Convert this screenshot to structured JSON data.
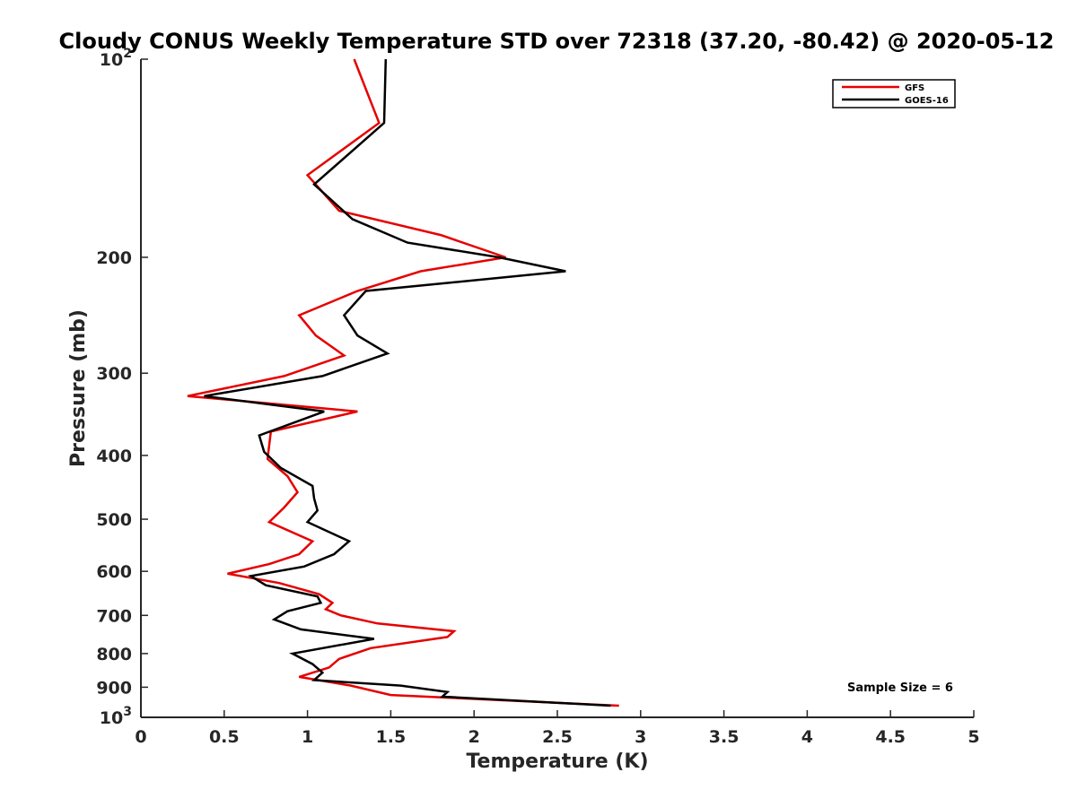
{
  "chart_data": {
    "type": "line",
    "title": "Cloudy CONUS Weekly Temperature STD over 72318 (37.20, -80.42) @ 2020-05-12",
    "xlabel": "Temperature (K)",
    "ylabel": "Pressure (mb)",
    "xlim": [
      0,
      5
    ],
    "ylim": [
      100,
      1000
    ],
    "yscale": "log",
    "y_reversed": true,
    "x_ticks": [
      0,
      0.5,
      1,
      1.5,
      2,
      2.5,
      3,
      3.5,
      4,
      4.5,
      5
    ],
    "x_tick_labels": [
      "0",
      "0.5",
      "1",
      "1.5",
      "2",
      "2.5",
      "3",
      "3.5",
      "4",
      "4.5",
      "5"
    ],
    "y_ticks": [
      200,
      300,
      400,
      500,
      600,
      700,
      800,
      900
    ],
    "y_tick_labels": [
      "200",
      "300",
      "400",
      "500",
      "600",
      "700",
      "800",
      "900"
    ],
    "y_ends": [
      {
        "value": 100,
        "base": "10",
        "exp": "2"
      },
      {
        "value": 1000,
        "base": "10",
        "exp": "3"
      }
    ],
    "legend_position": "top-right",
    "annotation": "Sample Size = 6",
    "series": [
      {
        "name": "GFS",
        "color": "#e60000",
        "points": [
          [
            1.28,
            100
          ],
          [
            1.43,
            125
          ],
          [
            1.0,
            150
          ],
          [
            1.19,
            170
          ],
          [
            1.8,
            185
          ],
          [
            2.19,
            200
          ],
          [
            1.68,
            210
          ],
          [
            1.3,
            225
          ],
          [
            0.95,
            245
          ],
          [
            1.05,
            263
          ],
          [
            1.22,
            282
          ],
          [
            0.86,
            303
          ],
          [
            0.28,
            325
          ],
          [
            1.3,
            343
          ],
          [
            0.78,
            368
          ],
          [
            0.76,
            405
          ],
          [
            0.88,
            430
          ],
          [
            0.94,
            455
          ],
          [
            0.86,
            480
          ],
          [
            0.77,
            505
          ],
          [
            1.03,
            540
          ],
          [
            0.95,
            565
          ],
          [
            0.77,
            585
          ],
          [
            0.52,
            605
          ],
          [
            0.83,
            625
          ],
          [
            1.07,
            650
          ],
          [
            1.15,
            670
          ],
          [
            1.11,
            685
          ],
          [
            1.2,
            700
          ],
          [
            1.42,
            720
          ],
          [
            1.88,
            740
          ],
          [
            1.84,
            755
          ],
          [
            1.38,
            785
          ],
          [
            1.19,
            815
          ],
          [
            1.13,
            840
          ],
          [
            0.95,
            868
          ],
          [
            1.26,
            895
          ],
          [
            1.5,
            925
          ],
          [
            2.87,
            960
          ]
        ]
      },
      {
        "name": "GOES-16",
        "color": "#000000",
        "points": [
          [
            1.47,
            100
          ],
          [
            1.46,
            125
          ],
          [
            1.04,
            155
          ],
          [
            1.27,
            175
          ],
          [
            1.6,
            190
          ],
          [
            2.15,
            200
          ],
          [
            2.55,
            210
          ],
          [
            1.35,
            225
          ],
          [
            1.22,
            245
          ],
          [
            1.3,
            263
          ],
          [
            1.48,
            280
          ],
          [
            1.09,
            303
          ],
          [
            0.38,
            325
          ],
          [
            1.1,
            343
          ],
          [
            0.71,
            373
          ],
          [
            0.74,
            395
          ],
          [
            0.84,
            418
          ],
          [
            1.03,
            445
          ],
          [
            1.04,
            465
          ],
          [
            1.06,
            485
          ],
          [
            1.0,
            505
          ],
          [
            1.25,
            540
          ],
          [
            1.16,
            565
          ],
          [
            0.98,
            590
          ],
          [
            0.66,
            610
          ],
          [
            0.75,
            630
          ],
          [
            1.06,
            655
          ],
          [
            1.08,
            670
          ],
          [
            0.88,
            690
          ],
          [
            0.8,
            710
          ],
          [
            0.96,
            735
          ],
          [
            1.4,
            760
          ],
          [
            0.91,
            800
          ],
          [
            1.03,
            830
          ],
          [
            1.09,
            855
          ],
          [
            1.04,
            878
          ],
          [
            1.56,
            895
          ],
          [
            1.84,
            915
          ],
          [
            1.81,
            930
          ],
          [
            2.82,
            960
          ]
        ]
      }
    ]
  }
}
